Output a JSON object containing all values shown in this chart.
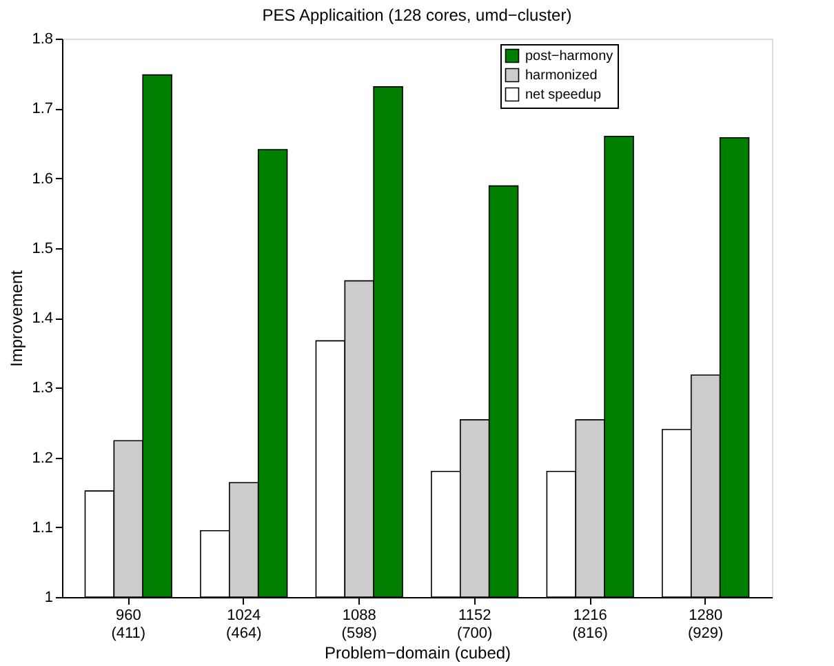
{
  "chart_data": {
    "type": "bar",
    "title": "PES Applicaition (128 cores, umd−cluster)",
    "xlabel": "Problem−domain (cubed)",
    "ylabel": "Improvement",
    "categories": [
      "960\n(411)",
      "1024\n(464)",
      "1088\n(598)",
      "1152\n(700)",
      "1216\n(816)",
      "1280\n(929)"
    ],
    "series": [
      {
        "name": "net speedup",
        "color": "#ffffff",
        "values": [
          1.152,
          1.095,
          1.367,
          1.18,
          1.18,
          1.24
        ]
      },
      {
        "name": "harmonized",
        "color": "#cccccc",
        "values": [
          1.224,
          1.164,
          1.453,
          1.254,
          1.254,
          1.318
        ]
      },
      {
        "name": "post−harmony",
        "color": "#007f00",
        "values": [
          1.748,
          1.641,
          1.731,
          1.589,
          1.66,
          1.658
        ]
      }
    ],
    "ylim": [
      1,
      1.8
    ],
    "yticks": [
      1,
      1.1,
      1.2,
      1.3,
      1.4,
      1.5,
      1.6,
      1.7,
      1.8
    ],
    "grid": false,
    "legend": "top right"
  }
}
